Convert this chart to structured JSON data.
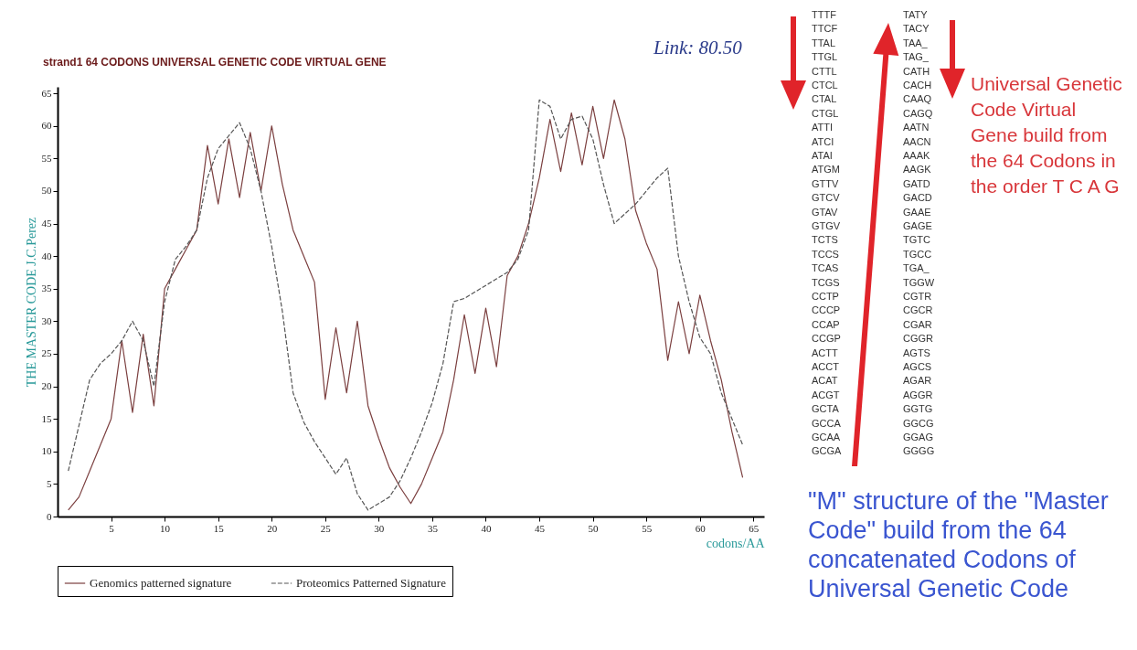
{
  "chart_data": {
    "type": "line",
    "title": "strand1 64 CODONS UNIVERSAL GENETIC CODE VIRTUAL GENE",
    "xlabel": "codons/AA",
    "ylabel": "THE MASTER CODE J.C.Perez",
    "x": [
      1,
      2,
      3,
      4,
      5,
      6,
      7,
      8,
      9,
      10,
      11,
      12,
      13,
      14,
      15,
      16,
      17,
      18,
      19,
      20,
      21,
      22,
      23,
      24,
      25,
      26,
      27,
      28,
      29,
      30,
      31,
      32,
      33,
      34,
      35,
      36,
      37,
      38,
      39,
      40,
      41,
      42,
      43,
      44,
      45,
      46,
      47,
      48,
      49,
      50,
      51,
      52,
      53,
      54,
      55,
      56,
      57,
      58,
      59,
      60,
      61,
      62,
      63,
      64
    ],
    "series": [
      {
        "name": "Genomics patterned signature",
        "color": "#7b3f3f",
        "line_style": "solid",
        "values": [
          1,
          3,
          7,
          11,
          15,
          27,
          16,
          28,
          17,
          35,
          38,
          41,
          44,
          57,
          48,
          58,
          49,
          59,
          50,
          60,
          51,
          44,
          40,
          36,
          18,
          29,
          19,
          30,
          17,
          12,
          7.5,
          4.5,
          2,
          5,
          9,
          13,
          21,
          31,
          22,
          32,
          23,
          37,
          40,
          45,
          52,
          61,
          53,
          62,
          54,
          63,
          55,
          64,
          58,
          47,
          42,
          38,
          24,
          33,
          25,
          34,
          27,
          21,
          13,
          6
        ]
      },
      {
        "name": "Proteomics Patterned Signature",
        "color": "#555555",
        "line_style": "dashed",
        "values": [
          7,
          14,
          21,
          23.5,
          25,
          27,
          30,
          27,
          20,
          33,
          39.5,
          41.5,
          44,
          52,
          56.5,
          58.5,
          60.5,
          56.5,
          50,
          41.5,
          31.5,
          19,
          14.5,
          11.5,
          9,
          6.5,
          9,
          3.5,
          1,
          2,
          3,
          5.5,
          9,
          13,
          17.5,
          23.5,
          33,
          33.5,
          34.5,
          35.5,
          36.5,
          37.5,
          39.5,
          44,
          64,
          63,
          58,
          61,
          61.5,
          58,
          51,
          45,
          46.5,
          48,
          50,
          52,
          53.5,
          40,
          33,
          27.5,
          25,
          19,
          15,
          11
        ]
      }
    ],
    "xlim": [
      0,
      66
    ],
    "xticks": [
      5,
      10,
      15,
      20,
      25,
      30,
      35,
      40,
      45,
      50,
      55,
      60,
      65
    ],
    "ylim": [
      0,
      66
    ],
    "yticks": [
      0,
      5,
      10,
      15,
      20,
      25,
      30,
      35,
      40,
      45,
      50,
      55,
      60,
      65
    ],
    "legend": "bottom",
    "annotations": [
      "Link: 80.50",
      "TTTF",
      "TTCF",
      "TTAL",
      "TTGL",
      "CTTL",
      "CTCL",
      "CTAL",
      "CTGL",
      "ATTI",
      "ATCI",
      "ATAI",
      "ATGM",
      "GTTV",
      "GTCV",
      "GTAV",
      "GTGV",
      "TCTS",
      "TCCS",
      "TCAS",
      "TCGS",
      "CCTP",
      "CCCP",
      "CCAP",
      "CCGP",
      "ACTT",
      "ACCT",
      "ACAT",
      "ACGT",
      "GCTA",
      "GCCA",
      "GCAA",
      "GCGA",
      "TATY",
      "TACY",
      "TAA_",
      "TAG_",
      "CATH",
      "CACH",
      "CAAQ",
      "CAGQ",
      "AATN",
      "AACN",
      "AAAK",
      "AAGK",
      "GATD",
      "GACD",
      "GAAE",
      "GAGE",
      "TGTC",
      "TGCC",
      "TGA_",
      "TGGW",
      "CGTR",
      "CGCR",
      "CGAR",
      "CGGR",
      "AGTS",
      "AGCS",
      "AGAR",
      "AGGR",
      "GGTG",
      "GGCG",
      "GGAG",
      "GGGG",
      "Universal Genetic Code Virtual Gene build from the 64 Codons in the order T C A G",
      "\"M\" structure of the \"Master Code\" build from the 64 concatenated Codons of Universal Genetic Code"
    ]
  }
}
